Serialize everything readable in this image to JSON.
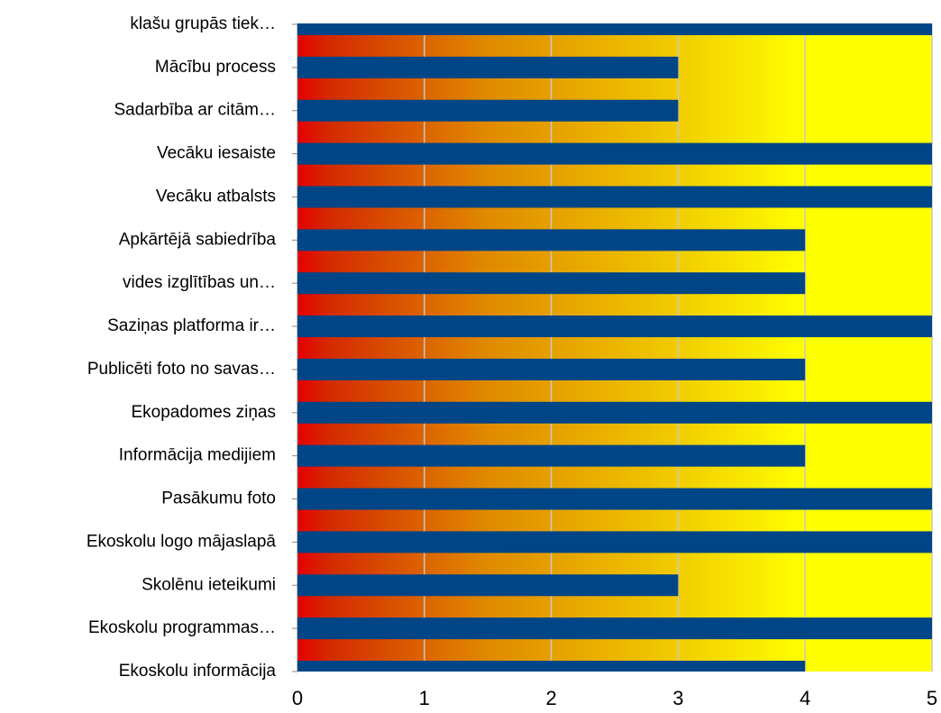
{
  "chart_data": {
    "type": "bar",
    "orientation": "horizontal",
    "categories": [
      "Ekoskolu informācija",
      "Ekoskolu programmas…",
      "Skolēnu ieteikumi",
      "Ekoskolu logo mājaslapā",
      "Pasākumu foto",
      "Informācija medijiem",
      "Ekopadomes ziņas",
      "Publicēti foto no savas…",
      "Saziņas platforma ir…",
      "vides izglītības un…",
      "Apkārtējā sabiedrība",
      "Vecāku atbalsts",
      "Vecāku iesaiste",
      "Sadarbība ar citām…",
      "Mācību process",
      "klašu grupās tiek…"
    ],
    "values": [
      4,
      5,
      3,
      5,
      5,
      4,
      5,
      4,
      5,
      4,
      4,
      5,
      5,
      3,
      3,
      5
    ],
    "color": "#004586",
    "xlim": [
      0,
      5
    ],
    "xticks": [
      0,
      1,
      2,
      3,
      4,
      5
    ],
    "grid": true
  }
}
